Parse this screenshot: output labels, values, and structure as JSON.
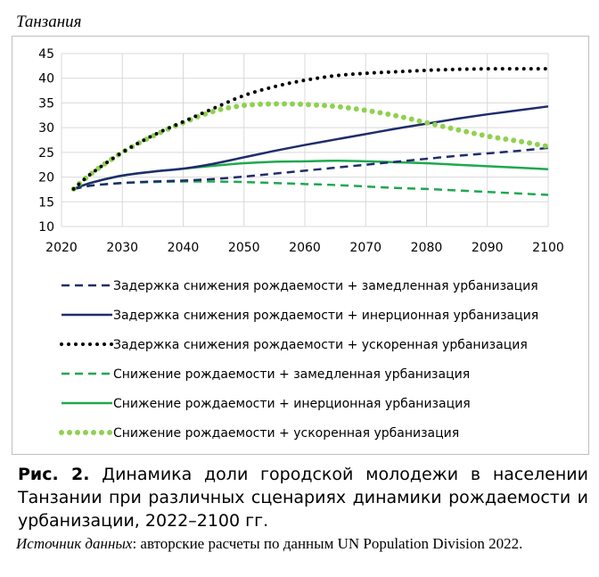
{
  "page": {
    "title": "Танзания",
    "caption_label": "Рис. 2.",
    "caption_text": "Динамика доли городской молодежи в населении Танзании при различных сценариях динамики рождаемости и урбанизации, 2022–2100 гг.",
    "source_label": "Источник данных",
    "source_text": ": авторские расчеты по данным UN Population Division 2022."
  },
  "chart_data": {
    "type": "line",
    "xlim": [
      2020,
      2100
    ],
    "ylim": [
      10,
      45
    ],
    "x_ticks": [
      2020,
      2030,
      2040,
      2050,
      2060,
      2070,
      2080,
      2090,
      2100
    ],
    "y_ticks": [
      10,
      15,
      20,
      25,
      30,
      35,
      40,
      45
    ],
    "grid": "horizontal+vertical",
    "legend_position": "bottom",
    "x": [
      2022,
      2025,
      2030,
      2035,
      2040,
      2045,
      2050,
      2055,
      2060,
      2065,
      2070,
      2075,
      2080,
      2085,
      2090,
      2095,
      2100
    ],
    "series": [
      {
        "name": "Задержка снижения рождаемости + замедленная урбанизация",
        "color": "#1f2d6b",
        "dash": "dashed",
        "values": [
          17.6,
          18.3,
          18.8,
          19.1,
          19.3,
          19.6,
          20.1,
          20.7,
          21.3,
          21.9,
          22.5,
          23.1,
          23.7,
          24.3,
          24.8,
          25.3,
          25.9
        ]
      },
      {
        "name": "Задержка снижения рождаемости + инерционная урбанизация",
        "color": "#1f2d6b",
        "dash": "solid",
        "values": [
          17.6,
          18.9,
          20.3,
          21.1,
          21.7,
          22.7,
          24.0,
          25.3,
          26.5,
          27.6,
          28.7,
          29.8,
          30.8,
          31.8,
          32.7,
          33.5,
          34.3
        ]
      },
      {
        "name": "Задержка снижения рождаемости + ускоренная урбанизация",
        "color": "#000000",
        "dash": "dotted",
        "values": [
          17.6,
          20.8,
          25.0,
          28.4,
          31.2,
          33.9,
          36.5,
          38.3,
          39.6,
          40.5,
          41.0,
          41.3,
          41.6,
          41.8,
          41.9,
          41.9,
          41.9
        ]
      },
      {
        "name": "Снижение рождаемости + замедленная урбанизация",
        "color": "#1fa84f",
        "dash": "dashed",
        "values": [
          17.6,
          18.3,
          18.8,
          19.0,
          19.1,
          19.1,
          19.0,
          18.8,
          18.6,
          18.4,
          18.1,
          17.8,
          17.6,
          17.3,
          17.0,
          16.7,
          16.4
        ]
      },
      {
        "name": "Снижение рождаемости + инерционная урбанизация",
        "color": "#1fa84f",
        "dash": "solid",
        "values": [
          17.6,
          18.9,
          20.3,
          21.1,
          21.7,
          22.3,
          22.8,
          23.1,
          23.2,
          23.3,
          23.2,
          23.0,
          22.8,
          22.5,
          22.2,
          21.9,
          21.6
        ]
      },
      {
        "name": "Снижение рождаемости + ускоренная урбанизация",
        "color": "#8fd14f",
        "dash": "bigdotted",
        "values": [
          17.6,
          20.8,
          25.0,
          28.3,
          31.0,
          33.3,
          34.5,
          34.8,
          34.7,
          34.3,
          33.5,
          32.4,
          31.0,
          29.6,
          28.3,
          27.3,
          26.2
        ]
      }
    ]
  }
}
